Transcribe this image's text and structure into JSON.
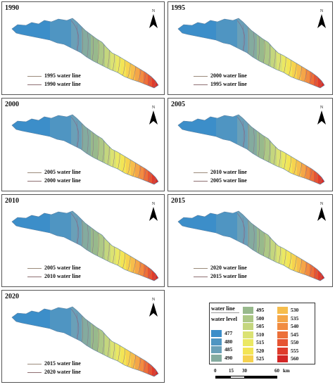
{
  "panels": [
    {
      "year": "1990",
      "line_a": "1995 water line",
      "line_b": "1990 water line"
    },
    {
      "year": "1995",
      "line_a": "2000 water line",
      "line_b": "1995 water line"
    },
    {
      "year": "2000",
      "line_a": "2005 water line",
      "line_b": "2000 water line"
    },
    {
      "year": "2005",
      "line_a": "2010 water line",
      "line_b": "2005 water line"
    },
    {
      "year": "2010",
      "line_a": "2005 water line",
      "line_b": "2010 water line"
    },
    {
      "year": "2015",
      "line_a": "2020 water line",
      "line_b": "2015 water line"
    },
    {
      "year": "2020",
      "line_a": "2015 water line",
      "line_b": "2020 water line"
    }
  ],
  "north_label": "N",
  "legend": {
    "water_line_label": "water line",
    "water_level_label": "water level",
    "levels": [
      {
        "value": "477",
        "color": "#3c8ec9"
      },
      {
        "value": "480",
        "color": "#4f95c2"
      },
      {
        "value": "485",
        "color": "#6aa0b8"
      },
      {
        "value": "490",
        "color": "#84ab9f"
      },
      {
        "value": "495",
        "color": "#98b98c"
      },
      {
        "value": "500",
        "color": "#adc886"
      },
      {
        "value": "505",
        "color": "#c4d67e"
      },
      {
        "value": "510",
        "color": "#dbe273"
      },
      {
        "value": "515",
        "color": "#ebe863"
      },
      {
        "value": "520",
        "color": "#f3e455"
      },
      {
        "value": "525",
        "color": "#f6d24f"
      },
      {
        "value": "530",
        "color": "#f6bd4c"
      },
      {
        "value": "535",
        "color": "#f4a648"
      },
      {
        "value": "540",
        "color": "#f18c41"
      },
      {
        "value": "545",
        "color": "#ec703a"
      },
      {
        "value": "550",
        "color": "#e65433"
      },
      {
        "value": "555",
        "color": "#df3b2c"
      },
      {
        "value": "560",
        "color": "#d32626"
      }
    ]
  },
  "scale": {
    "ticks": [
      "0",
      "15",
      "30",
      "60"
    ],
    "unit": "km"
  }
}
